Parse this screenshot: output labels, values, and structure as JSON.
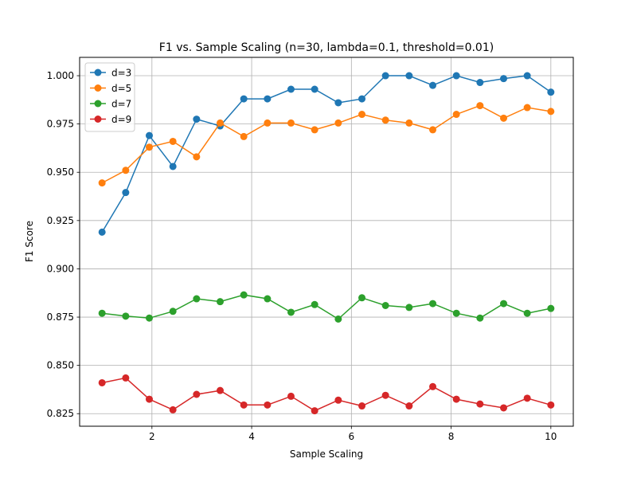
{
  "chart_data": {
    "type": "line",
    "title": "F1 vs. Sample Scaling (n=30, lambda=0.1, threshold=0.01)",
    "xlabel": "Sample Scaling",
    "ylabel": "F1 Score",
    "xlim": [
      0.55,
      10.45
    ],
    "ylim": [
      0.8185,
      1.0095
    ],
    "xticks": [
      2,
      4,
      6,
      8,
      10
    ],
    "yticks": [
      0.825,
      0.85,
      0.875,
      0.9,
      0.925,
      0.95,
      0.975,
      1.0
    ],
    "ytick_labels": [
      "0.825",
      "0.850",
      "0.875",
      "0.900",
      "0.925",
      "0.950",
      "0.975",
      "1.000"
    ],
    "grid": true,
    "legend_position": "top-left",
    "x": [
      1.0,
      1.474,
      1.947,
      2.421,
      2.895,
      3.368,
      3.842,
      4.316,
      4.789,
      5.263,
      5.737,
      6.211,
      6.684,
      7.158,
      7.632,
      8.105,
      8.579,
      9.053,
      9.526,
      10.0
    ],
    "series": [
      {
        "name": "d=3",
        "color": "#1f77b4",
        "values": [
          0.919,
          0.9395,
          0.969,
          0.953,
          0.9775,
          0.974,
          0.988,
          0.988,
          0.993,
          0.993,
          0.986,
          0.988,
          1.0,
          1.0,
          0.995,
          1.0,
          0.9965,
          0.9985,
          1.0,
          0.9915
        ]
      },
      {
        "name": "d=5",
        "color": "#ff7f0e",
        "values": [
          0.9445,
          0.951,
          0.963,
          0.966,
          0.958,
          0.9755,
          0.9685,
          0.9755,
          0.9755,
          0.972,
          0.9755,
          0.98,
          0.977,
          0.9755,
          0.972,
          0.98,
          0.9845,
          0.978,
          0.9835,
          0.9815
        ]
      },
      {
        "name": "d=7",
        "color": "#2ca02c",
        "values": [
          0.877,
          0.8755,
          0.8745,
          0.878,
          0.8845,
          0.883,
          0.8865,
          0.8845,
          0.8775,
          0.8815,
          0.874,
          0.885,
          0.881,
          0.88,
          0.882,
          0.877,
          0.8745,
          0.882,
          0.877,
          0.8795
        ]
      },
      {
        "name": "d=9",
        "color": "#d62728",
        "values": [
          0.841,
          0.8435,
          0.8325,
          0.827,
          0.835,
          0.837,
          0.8295,
          0.8295,
          0.834,
          0.8265,
          0.832,
          0.829,
          0.8345,
          0.829,
          0.839,
          0.8325,
          0.83,
          0.828,
          0.833,
          0.8295
        ]
      }
    ]
  }
}
